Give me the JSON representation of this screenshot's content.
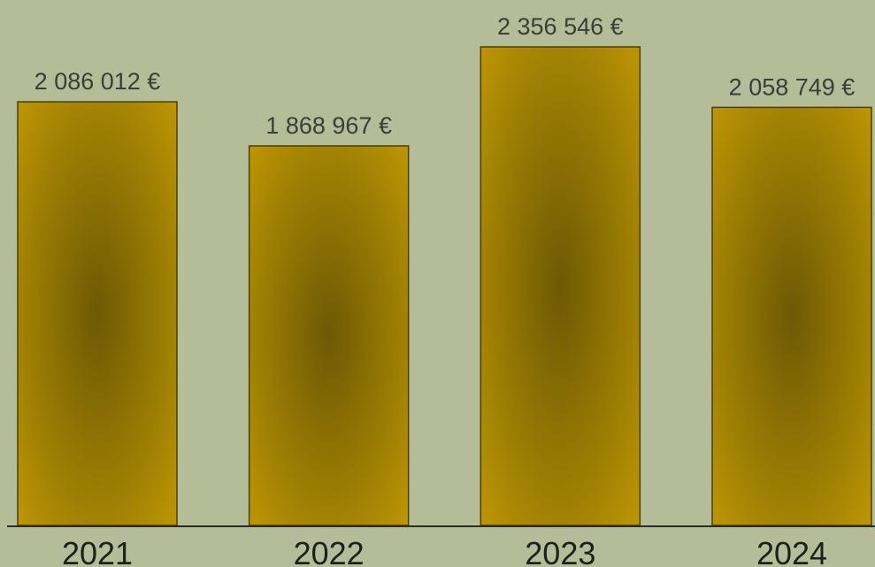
{
  "colors": {
    "background": "#b4bc98",
    "bar_light": "#c49a04",
    "bar_dark": "#6e5904",
    "bar_border": "#4a3f05",
    "axis": "#2a2a26",
    "value_text": "#3d3d38",
    "tick_text": "#1f1f1c"
  },
  "chart_data": {
    "type": "bar",
    "categories": [
      "2021",
      "2022",
      "2023",
      "2024"
    ],
    "values": [
      2086012,
      1868967,
      2356546,
      2058749
    ],
    "value_labels": [
      "2 086 012 €",
      "1 868 967 €",
      "2 356 546 €",
      "2 058 749 €"
    ],
    "title": "",
    "xlabel": "",
    "ylabel": "",
    "ylim": [
      0,
      2400000
    ],
    "grid": false,
    "legend": "none"
  }
}
